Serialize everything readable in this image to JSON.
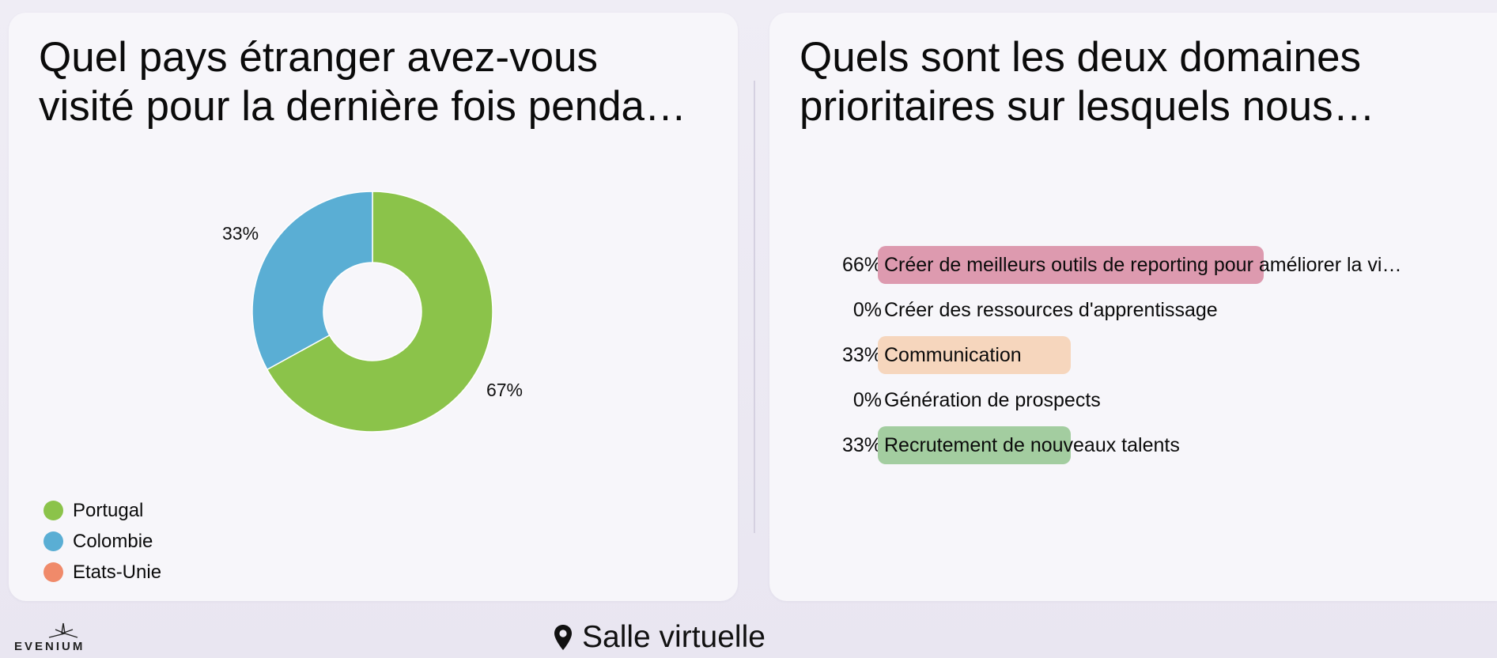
{
  "left_card": {
    "title": "Quel pays étranger avez-vous\nvisité pour la dernière fois penda…"
  },
  "right_card": {
    "title": "Quels sont les deux domaines\nprioritaires sur lesquels nous…"
  },
  "footer": {
    "logo_text": "EVENIUM",
    "logo_icon": "evenium-star-icon",
    "room_icon": "map-pin-icon",
    "room_label": "Salle virtuelle"
  },
  "chart_data": [
    {
      "type": "pie",
      "style": "donut",
      "categories": [
        "Portugal",
        "Colombie",
        "Etats-Unie"
      ],
      "values": [
        67,
        33,
        0
      ],
      "value_labels": [
        "67%",
        "33%",
        ""
      ],
      "colors": [
        "#8bc34a",
        "#5aaed4",
        "#f08a6a"
      ],
      "legend_position": "bottom-left"
    },
    {
      "type": "bar",
      "orientation": "horizontal",
      "categories": [
        "Créer de meilleurs outils de reporting pour améliorer la vi…",
        "Créer des ressources d'apprentissage",
        "Communication",
        "Génération de prospects",
        "Recrutement de nouveaux talents"
      ],
      "values": [
        66,
        0,
        33,
        0,
        33
      ],
      "value_labels": [
        "66%",
        "0%",
        "33%",
        "0%",
        "33%"
      ],
      "colors": [
        "#dd9aaf",
        "#dd9aaf",
        "#f6d6bd",
        "#f6d6bd",
        "#a3cda0"
      ],
      "xlim": [
        0,
        100
      ]
    }
  ]
}
